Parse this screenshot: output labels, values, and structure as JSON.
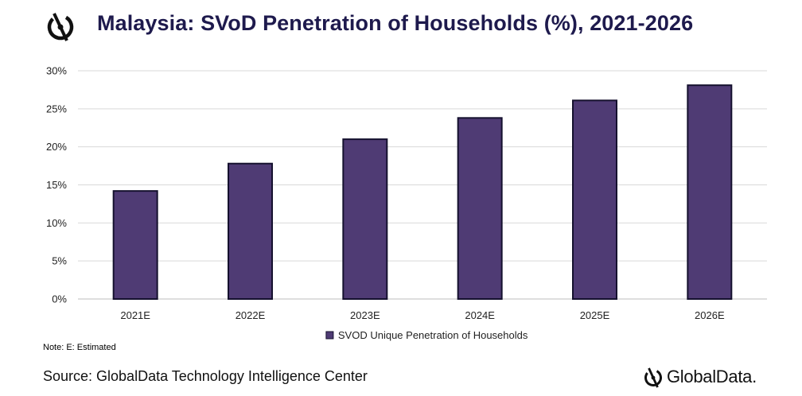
{
  "header": {
    "title": "Malaysia: SVoD Penetration of Households (%), 2021-2026",
    "logo_icon": "globaldata-logo-icon"
  },
  "chart_data": {
    "type": "bar",
    "categories": [
      "2021E",
      "2022E",
      "2023E",
      "2024E",
      "2025E",
      "2026E"
    ],
    "series": [
      {
        "name": "SVOD Unique Penetration of Households",
        "values": [
          14.2,
          17.8,
          21.0,
          23.8,
          26.1,
          28.1
        ],
        "color": "#4f3b74"
      }
    ],
    "ylim": [
      0,
      30
    ],
    "yticks": [
      "0%",
      "5%",
      "10%",
      "15%",
      "20%",
      "25%",
      "30%"
    ],
    "ytick_values": [
      0,
      5,
      10,
      15,
      20,
      25,
      30
    ],
    "grid": true,
    "legend": "bottom-center",
    "bar_edge_color": "#15112e"
  },
  "footer": {
    "note": "Note: E: Estimated",
    "source": "Source: GlobalData Technology Intelligence Center",
    "brand": "GlobalData."
  }
}
